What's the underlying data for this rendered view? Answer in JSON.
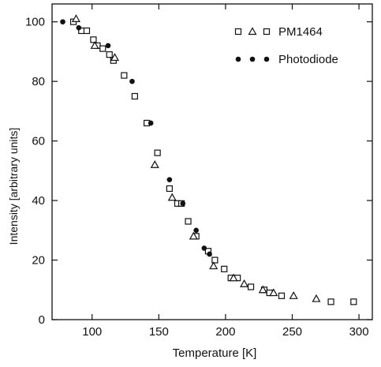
{
  "chart_data": {
    "type": "scatter",
    "xlabel": "Temperature  [K]",
    "ylabel": "Intensity  [arbitrary units]",
    "xlim": [
      70,
      310
    ],
    "ylim": [
      0,
      106
    ],
    "xticks": [
      100,
      150,
      200,
      250,
      300
    ],
    "yticks": [
      0,
      20,
      40,
      60,
      80,
      100
    ],
    "grid": false,
    "legend_position": "top-right",
    "series": [
      {
        "name": "PM1464",
        "marker": "square-triangle",
        "squares": [
          {
            "x": 86,
            "y": 100
          },
          {
            "x": 92,
            "y": 97
          },
          {
            "x": 96,
            "y": 97
          },
          {
            "x": 101,
            "y": 94
          },
          {
            "x": 104,
            "y": 92
          },
          {
            "x": 108,
            "y": 91
          },
          {
            "x": 113,
            "y": 89
          },
          {
            "x": 116,
            "y": 87
          },
          {
            "x": 124,
            "y": 82
          },
          {
            "x": 132,
            "y": 75
          },
          {
            "x": 141,
            "y": 66
          },
          {
            "x": 149,
            "y": 56
          },
          {
            "x": 158,
            "y": 44
          },
          {
            "x": 164,
            "y": 39
          },
          {
            "x": 167,
            "y": 39
          },
          {
            "x": 172,
            "y": 33
          },
          {
            "x": 178,
            "y": 28
          },
          {
            "x": 187,
            "y": 23
          },
          {
            "x": 192,
            "y": 20
          },
          {
            "x": 199,
            "y": 17
          },
          {
            "x": 204,
            "y": 14
          },
          {
            "x": 209,
            "y": 14
          },
          {
            "x": 219,
            "y": 11
          },
          {
            "x": 229,
            "y": 10
          },
          {
            "x": 233,
            "y": 9
          },
          {
            "x": 242,
            "y": 8
          },
          {
            "x": 279,
            "y": 6
          },
          {
            "x": 296,
            "y": 6
          }
        ],
        "triangles": [
          {
            "x": 88,
            "y": 101
          },
          {
            "x": 102,
            "y": 92
          },
          {
            "x": 117,
            "y": 88
          },
          {
            "x": 147,
            "y": 52
          },
          {
            "x": 160,
            "y": 41
          },
          {
            "x": 176,
            "y": 28
          },
          {
            "x": 191,
            "y": 18
          },
          {
            "x": 206,
            "y": 14
          },
          {
            "x": 214,
            "y": 12
          },
          {
            "x": 228,
            "y": 10
          },
          {
            "x": 236,
            "y": 9
          },
          {
            "x": 251,
            "y": 8
          },
          {
            "x": 268,
            "y": 7
          }
        ]
      },
      {
        "name": "Photodiode",
        "marker": "filled-circle",
        "points": [
          {
            "x": 78,
            "y": 100
          },
          {
            "x": 90,
            "y": 98
          },
          {
            "x": 112,
            "y": 92
          },
          {
            "x": 130,
            "y": 80
          },
          {
            "x": 144,
            "y": 66
          },
          {
            "x": 158,
            "y": 47
          },
          {
            "x": 168,
            "y": 39
          },
          {
            "x": 178,
            "y": 30
          },
          {
            "x": 184,
            "y": 24
          },
          {
            "x": 188,
            "y": 22
          }
        ]
      }
    ]
  },
  "colors": {
    "ink": "#111111",
    "background": "#ffffff"
  }
}
